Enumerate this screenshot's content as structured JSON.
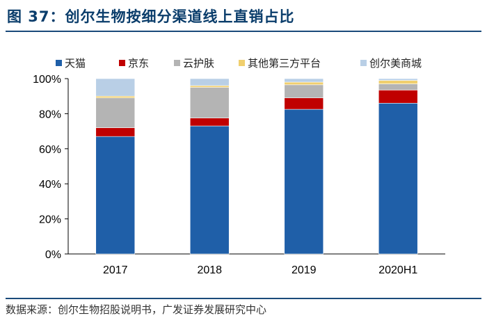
{
  "figure": {
    "title": "图 37：创尔生物按细分渠道线上直销占比",
    "source": "数据来源：创尔生物招股说明书，广发证券发展研究中心"
  },
  "chart_data": {
    "type": "bar",
    "stacked": true,
    "categories": [
      "2017",
      "2018",
      "2019",
      "2020H1"
    ],
    "series": [
      {
        "name": "天猫",
        "color": "#1f5fa8",
        "values": [
          67,
          73,
          82.5,
          86
        ]
      },
      {
        "name": "京东",
        "color": "#c00000",
        "values": [
          5,
          4.5,
          6.5,
          7.5
        ]
      },
      {
        "name": "云护肤",
        "color": "#b4b4b4",
        "values": [
          17,
          17.5,
          7.5,
          3.5
        ]
      },
      {
        "name": "其他第三方平台",
        "color": "#f0cf6e",
        "values": [
          1,
          1,
          1.5,
          2
        ]
      },
      {
        "name": "创尔美商城",
        "color": "#b9cfe6",
        "values": [
          10,
          4,
          2,
          1
        ]
      }
    ],
    "yaxis": {
      "min": 0,
      "max": 100,
      "ticks": [
        "0%",
        "20%",
        "40%",
        "60%",
        "80%",
        "100%"
      ]
    },
    "legend": "top",
    "grid": false
  }
}
